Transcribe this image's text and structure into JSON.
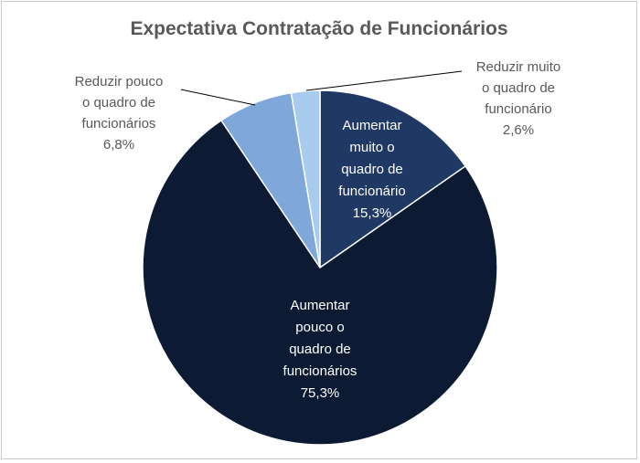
{
  "chart_data": {
    "type": "pie",
    "title": "Expectativa Contratação de Funcionários",
    "slices": [
      {
        "label_lines": [
          "Aumentar",
          "muito o",
          "quadro de",
          "funcionário"
        ],
        "value": 15.3,
        "value_label": "15,3%",
        "color": "#1f3864",
        "label_color": "#ffffff",
        "label_pos": "inside"
      },
      {
        "label_lines": [
          "Aumentar",
          "pouco o",
          "quadro de",
          "funcionários"
        ],
        "value": 75.3,
        "value_label": "75,3%",
        "color": "#0c1a33",
        "label_color": "#ffffff",
        "label_pos": "inside"
      },
      {
        "label_lines": [
          "Reduzir pouco",
          "o quadro de",
          "funcionários"
        ],
        "value": 6.8,
        "value_label": "6,8%",
        "color": "#7fa7d9",
        "label_color": "#595959",
        "label_pos": "outside-left"
      },
      {
        "label_lines": [
          "Reduzir muito",
          "o quadro de",
          "funcionário"
        ],
        "value": 2.6,
        "value_label": "2,6%",
        "color": "#a9cbee",
        "label_color": "#595959",
        "label_pos": "outside-right"
      }
    ],
    "legend": "none"
  }
}
